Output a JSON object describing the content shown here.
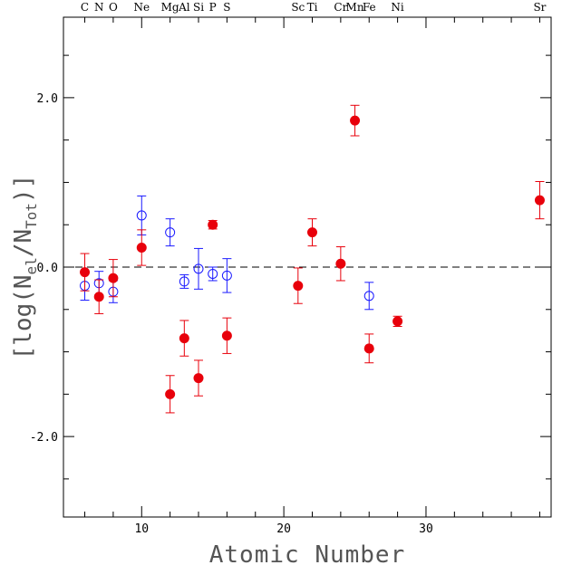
{
  "chart_data": {
    "type": "scatter",
    "xlabel": "Atomic Number",
    "ylabel": "[log(N",
    "ylabel_sub1": "el",
    "ylabel_mid": "/N",
    "ylabel_sub2": "Tot",
    "ylabel_end": ")]",
    "xlim": [
      4.5,
      38.8
    ],
    "ylim": [
      -2.95,
      2.95
    ],
    "x_ticks": [
      10,
      20,
      30
    ],
    "y_ticks": [
      2.0,
      0.0,
      -2.0
    ],
    "y_tick_labels": [
      "2.0",
      "0.0",
      "-2.0"
    ],
    "reference_line": {
      "y": 0.0,
      "style": "dashed"
    },
    "element_labels": [
      {
        "x": 6,
        "text": "C"
      },
      {
        "x": 7,
        "text": "N"
      },
      {
        "x": 8,
        "text": "O"
      },
      {
        "x": 10,
        "text": "Ne"
      },
      {
        "x": 12,
        "text": "Mg"
      },
      {
        "x": 13,
        "text": "Al"
      },
      {
        "x": 14,
        "text": "Si"
      },
      {
        "x": 15,
        "text": "P"
      },
      {
        "x": 16,
        "text": "S"
      },
      {
        "x": 21,
        "text": "Sc"
      },
      {
        "x": 22,
        "text": "Ti"
      },
      {
        "x": 24,
        "text": "Cr"
      },
      {
        "x": 25,
        "text": "Mn"
      },
      {
        "x": 26,
        "text": "Fe"
      },
      {
        "x": 28,
        "text": "Ni"
      },
      {
        "x": 38,
        "text": "Sr"
      }
    ],
    "series": [
      {
        "marker": "filled-circle",
        "color": "#e8000b",
        "points": [
          {
            "x": 6,
            "y": -0.06,
            "yerr": 0.22
          },
          {
            "x": 7,
            "y": -0.35,
            "yerr": 0.2
          },
          {
            "x": 8,
            "y": -0.13,
            "yerr": 0.22
          },
          {
            "x": 10,
            "y": 0.23,
            "yerr": 0.21
          },
          {
            "x": 12,
            "y": -1.5,
            "yerr": 0.22
          },
          {
            "x": 13,
            "y": -0.84,
            "yerr": 0.21
          },
          {
            "x": 14,
            "y": -1.31,
            "yerr": 0.21
          },
          {
            "x": 15,
            "y": 0.5,
            "yerr": 0.05
          },
          {
            "x": 16,
            "y": -0.81,
            "yerr": 0.21
          },
          {
            "x": 21,
            "y": -0.22,
            "yerr": 0.21
          },
          {
            "x": 22,
            "y": 0.41,
            "yerr": 0.16
          },
          {
            "x": 24,
            "y": 0.04,
            "yerr": 0.2
          },
          {
            "x": 25,
            "y": 1.73,
            "yerr": 0.18
          },
          {
            "x": 26,
            "y": -0.96,
            "yerr": 0.17
          },
          {
            "x": 28,
            "y": -0.64,
            "yerr": 0.06
          },
          {
            "x": 38,
            "y": 0.79,
            "yerr": 0.22
          }
        ]
      },
      {
        "marker": "open-circle",
        "color": "#1a1aff",
        "points": [
          {
            "x": 6,
            "y": -0.22,
            "yerr": 0.17
          },
          {
            "x": 7,
            "y": -0.19,
            "yerr": 0.14
          },
          {
            "x": 8,
            "y": -0.29,
            "yerr": 0.13
          },
          {
            "x": 10,
            "y": 0.61,
            "yerr": 0.23
          },
          {
            "x": 12,
            "y": 0.41,
            "yerr": 0.16
          },
          {
            "x": 13,
            "y": -0.17,
            "yerr": 0.08
          },
          {
            "x": 14,
            "y": -0.02,
            "yerr": 0.24
          },
          {
            "x": 15,
            "y": -0.08,
            "yerr": 0.08
          },
          {
            "x": 16,
            "y": -0.1,
            "yerr": 0.2
          },
          {
            "x": 26,
            "y": -0.34,
            "yerr": 0.16
          }
        ]
      }
    ]
  }
}
